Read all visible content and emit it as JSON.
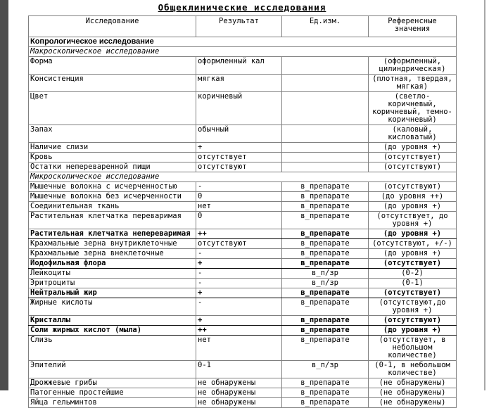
{
  "page": {
    "title": "Общеклинические исследования"
  },
  "table": {
    "headers": [
      "Исследование",
      "Результат",
      "Ед.изм.",
      "Референсные значения"
    ],
    "rows": [
      {
        "type": "section-bold",
        "name": "Копрологическое исследование"
      },
      {
        "type": "section-italic",
        "name": "Макроскопическое исследование"
      },
      {
        "type": "data",
        "name": "Форма",
        "result": "оформленный кал",
        "unit": "",
        "ref": "(оформленный, цилиндрическая)"
      },
      {
        "type": "data",
        "name": "Консистенция",
        "result": "мягкая",
        "unit": "",
        "ref": "(плотная, твердая, мягкая)"
      },
      {
        "type": "data",
        "name": "Цвет",
        "result": "коричневый",
        "unit": "",
        "ref": "(светло-коричневый, коричневый, темно-коричневый)"
      },
      {
        "type": "data",
        "name": "Запах",
        "result": "обычный",
        "unit": "",
        "ref": "(каловый, кисловатый)"
      },
      {
        "type": "data",
        "name": "Наличие слизи",
        "result": "+",
        "unit": "",
        "ref": "(до уровня +)"
      },
      {
        "type": "data",
        "name": "Кровь",
        "result": "отсутствует",
        "unit": "",
        "ref": "(отсутствует)"
      },
      {
        "type": "data",
        "name": "Остатки непереваренной пищи",
        "result": "отсутствуют",
        "unit": "",
        "ref": "(отсутствуют)"
      },
      {
        "type": "section-italic",
        "name": "Микроскопическое исследование"
      },
      {
        "type": "data",
        "name": "Мышечные волокна с исчерченностью",
        "result": "-",
        "unit": "в_препарате",
        "ref": "(отсутствуют)"
      },
      {
        "type": "data",
        "name": "Мышечные волокна без исчерченности",
        "result": "0",
        "unit": "в_препарате",
        "ref": "(до уровня ++)"
      },
      {
        "type": "data",
        "name": "Соединительная ткань",
        "result": "нет",
        "unit": "в_препарате",
        "ref": "(до уровня +)"
      },
      {
        "type": "data",
        "name": "Растительная клетчатка переваримая",
        "result": "0",
        "unit": "в_препарате",
        "ref": "(отсутствует, до уровня +)"
      },
      {
        "type": "data",
        "emph": true,
        "name": "Растительная клетчатка непереваримая",
        "result": "++",
        "unit": "в_препарате",
        "ref": "(до уровня +)"
      },
      {
        "type": "data",
        "name": "Крахмальные зерна внутриклеточные",
        "result": "отсутствуют",
        "unit": "в_препарате",
        "ref": "(отсутствуют, +/-)"
      },
      {
        "type": "data",
        "name": "Крахмальные зерна внеклеточные",
        "result": "-",
        "unit": "в_препарате",
        "ref": "(до уровня +)"
      },
      {
        "type": "data",
        "emph": true,
        "name": "Йодофильная флора",
        "result": "+",
        "unit": "в_препарате",
        "ref": "(отсутствует)"
      },
      {
        "type": "data",
        "name": "Лейкоциты",
        "result": "-",
        "unit": "в_п/зр",
        "ref": "(0-2)"
      },
      {
        "type": "data",
        "name": "Эритроциты",
        "result": "-",
        "unit": "в_п/зр",
        "ref": "(0-1)"
      },
      {
        "type": "data",
        "emph": true,
        "name": "Нейтральный жир",
        "result": "+",
        "unit": "в_препарате",
        "ref": "(отсутствует)"
      },
      {
        "type": "data",
        "name": "Жирные кислоты",
        "result": "-",
        "unit": "в_препарате",
        "ref": "(отсутствуют,до уровня +)"
      },
      {
        "type": "data",
        "emph": true,
        "name": "Кристаллы",
        "result": "+",
        "unit": "в_препарате",
        "ref": "(отсутствуют)"
      },
      {
        "type": "data",
        "emph": true,
        "name": "Соли жирных кислот (мыла)",
        "result": "++",
        "unit": "в_препарате",
        "ref": "(до уровня +)"
      },
      {
        "type": "data",
        "name": "Слизь",
        "result": "нет",
        "unit": "в_препарате",
        "ref": "(отсутствует, в небольшом количестве)"
      },
      {
        "type": "data",
        "name": "Эпителий",
        "result": "0-1",
        "unit": "в_п/зр",
        "ref": "(0-1, в небольшом количестве)"
      },
      {
        "type": "data",
        "name": "Дрожжевые грибы",
        "result": "не обнаружены",
        "unit": "в_препарате",
        "ref": "(не обнаружены)"
      },
      {
        "type": "data",
        "name": "Патогенные простейшие",
        "result": "не обнаружены",
        "unit": "в_препарате",
        "ref": "(не обнаружены)"
      },
      {
        "type": "data",
        "name": "Яйца гельминтов",
        "result": "не обнаружены",
        "unit": "в_препарате",
        "ref": "(не обнаружены)"
      }
    ]
  }
}
